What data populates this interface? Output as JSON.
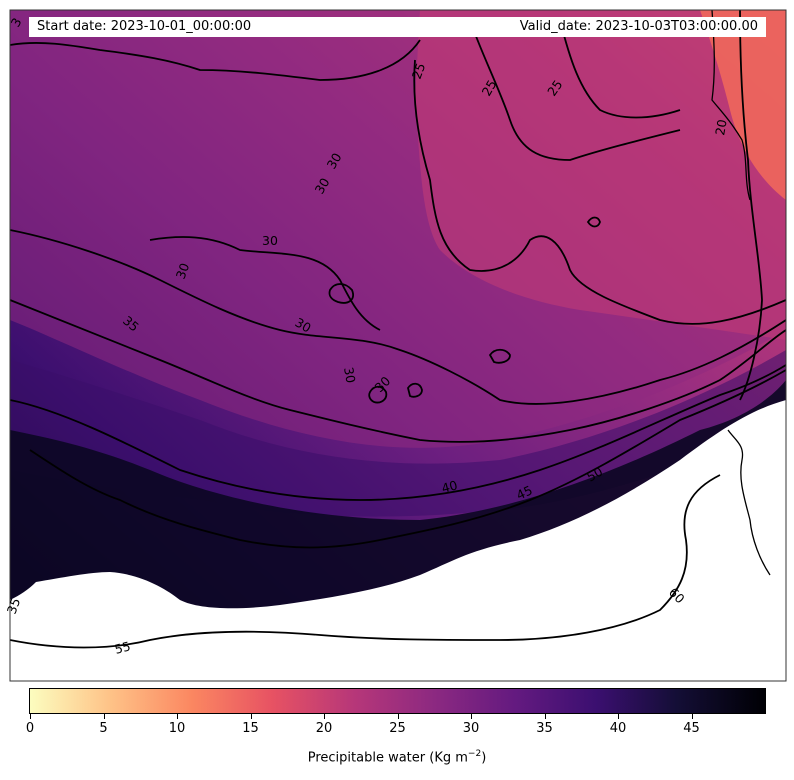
{
  "header": {
    "start_date": "Start date: 2023-10-01_00:00:00",
    "valid_date": "Valid_date: 2023-10-03T03:00:00.00"
  },
  "colorbar": {
    "label_text": "Precipitable water (Kg m",
    "label_sup": "−2",
    "label_close": ")",
    "min": 0,
    "max": 50,
    "ticks": [
      "0",
      "5",
      "10",
      "15",
      "20",
      "25",
      "30",
      "35",
      "40",
      "45"
    ],
    "colormap": "magma_r",
    "colors": [
      "#fcfdbf",
      "#fec287",
      "#fb8761",
      "#e75263",
      "#b73779",
      "#8c2981",
      "#641a80",
      "#3b0f70",
      "#140e36",
      "#000004"
    ]
  },
  "map": {
    "background_nodata_color": "#ffffff",
    "contour_labels": [
      "3",
      "25",
      "25",
      "25",
      "20",
      "30",
      "30",
      "30",
      "30",
      "35",
      "30",
      "30",
      "30",
      "40",
      "45",
      "50",
      "35",
      "55",
      "60"
    ]
  }
}
